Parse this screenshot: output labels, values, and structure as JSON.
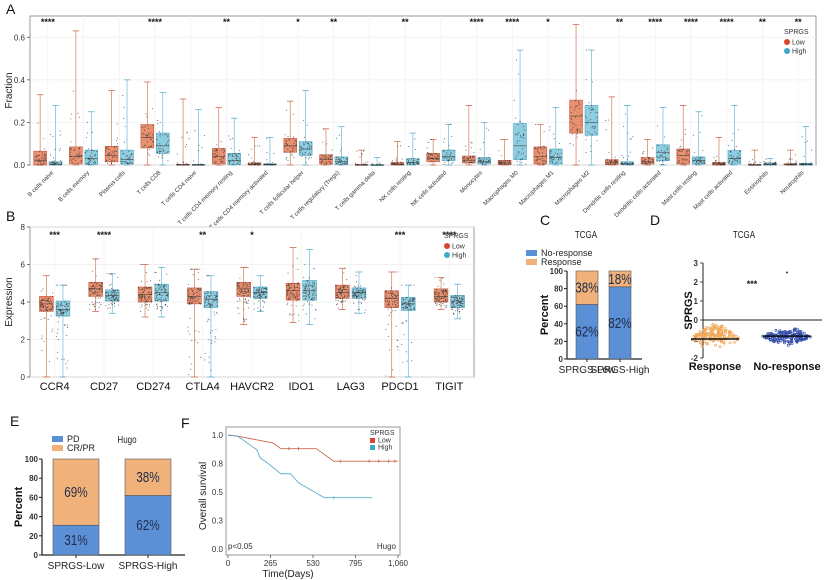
{
  "colors": {
    "low": "#e8906f",
    "low_line": "#c8563a",
    "high": "#8fcde0",
    "high_line": "#4aa8c8",
    "no_response": "#5b8fd6",
    "response": "#f0b27a",
    "response_dots": "#f0a85a",
    "noresponse_dots": "#2f4aa8"
  },
  "chart_data": [
    {
      "panel": "A",
      "type": "box",
      "ylabel": "Fraction",
      "ylim": [
        0,
        0.7
      ],
      "yticks": [
        "0.0",
        "0.2",
        "0.4",
        "0.6"
      ],
      "legend": {
        "title": "SPRGS",
        "entries": [
          "Low",
          "High"
        ],
        "position": "top-right"
      },
      "grid": true,
      "categories": [
        "B cells naive",
        "B cells memory",
        "Plasma cells",
        "T cells CD8",
        "T cells CD4 naive",
        "T cells CD4 memory resting",
        "T cells CD4 memory activated",
        "T cells follicular helper",
        "T cells regulatory (Tregs)",
        "T cells gamma delta",
        "NK cells resting",
        "NK cells activated",
        "Monocytes",
        "Macrophages M0",
        "Macrophages M1",
        "Macrophages M2",
        "Dendritic cells resting",
        "Dendritic cells activated",
        "Mast cells resting",
        "Mast cells activated",
        "Eosinophils",
        "Neutrophils"
      ],
      "significance": [
        "****",
        "",
        "",
        "****",
        "",
        "**",
        "",
        "*",
        "**",
        "",
        "**",
        "",
        "****",
        "****",
        "*",
        "",
        "**",
        "****",
        "****",
        "****",
        "**",
        "**"
      ],
      "series": [
        {
          "name": "Low",
          "boxes": [
            [
              0,
              0,
              0.02,
              0.065,
              0.33
            ],
            [
              0,
              0.005,
              0.04,
              0.085,
              0.63
            ],
            [
              0,
              0.015,
              0.045,
              0.088,
              0.35
            ],
            [
              0,
              0.08,
              0.13,
              0.19,
              0.39
            ],
            [
              0,
              0,
              0,
              0.003,
              0.31
            ],
            [
              0,
              0.005,
              0.04,
              0.078,
              0.27
            ],
            [
              0,
              0,
              0.003,
              0.01,
              0.13
            ],
            [
              0,
              0.06,
              0.09,
              0.125,
              0.3
            ],
            [
              0,
              0.005,
              0.025,
              0.048,
              0.17
            ],
            [
              0,
              0,
              0,
              0.002,
              0.07
            ],
            [
              0,
              0,
              0.003,
              0.012,
              0.11
            ],
            [
              0,
              0.015,
              0.03,
              0.055,
              0.12
            ],
            [
              0,
              0.01,
              0.02,
              0.042,
              0.28
            ],
            [
              0,
              0.002,
              0.01,
              0.022,
              0.12
            ],
            [
              0,
              0.005,
              0.04,
              0.085,
              0.19
            ],
            [
              0,
              0.15,
              0.23,
              0.305,
              0.66
            ],
            [
              0,
              0.002,
              0.01,
              0.025,
              0.32
            ],
            [
              0,
              0.005,
              0.015,
              0.035,
              0.12
            ],
            [
              0,
              0.005,
              0.045,
              0.075,
              0.28
            ],
            [
              0,
              0,
              0.005,
              0.012,
              0.13
            ],
            [
              0,
              0,
              0,
              0.002,
              0.07
            ],
            [
              0,
              0,
              0.002,
              0.006,
              0.07
            ]
          ]
        },
        {
          "name": "High",
          "boxes": [
            [
              0,
              0,
              0.003,
              0.015,
              0.28
            ],
            [
              0,
              0.003,
              0.03,
              0.07,
              0.25
            ],
            [
              0,
              0.005,
              0.025,
              0.07,
              0.4
            ],
            [
              0,
              0.055,
              0.09,
              0.15,
              0.34
            ],
            [
              0,
              0,
              0,
              0.002,
              0.26
            ],
            [
              0,
              0.003,
              0.02,
              0.055,
              0.22
            ],
            [
              0,
              0,
              0.002,
              0.005,
              0.13
            ],
            [
              0,
              0.045,
              0.075,
              0.11,
              0.35
            ],
            [
              0,
              0.003,
              0.015,
              0.038,
              0.18
            ],
            [
              0,
              0,
              0,
              0.001,
              0.035
            ],
            [
              0,
              0.003,
              0.012,
              0.03,
              0.15
            ],
            [
              0,
              0.02,
              0.04,
              0.07,
              0.19
            ],
            [
              0,
              0.005,
              0.015,
              0.035,
              0.2
            ],
            [
              0,
              0.025,
              0.09,
              0.195,
              0.54
            ],
            [
              0,
              0.005,
              0.035,
              0.075,
              0.27
            ],
            [
              0,
              0.14,
              0.2,
              0.28,
              0.54
            ],
            [
              0,
              0.001,
              0.005,
              0.015,
              0.28
            ],
            [
              0,
              0.02,
              0.06,
              0.095,
              0.27
            ],
            [
              0,
              0.005,
              0.02,
              0.038,
              0.25
            ],
            [
              0,
              0.005,
              0.03,
              0.068,
              0.28
            ],
            [
              0,
              0,
              0.002,
              0.01,
              0.03
            ],
            [
              0,
              0,
              0.003,
              0.008,
              0.18
            ]
          ]
        }
      ]
    },
    {
      "panel": "B",
      "type": "box",
      "ylabel": "Expression",
      "ylim": [
        0,
        8
      ],
      "yticks": [
        "0",
        "2",
        "4",
        "6",
        "8"
      ],
      "legend": {
        "title": "SPRGS",
        "entries": [
          "Low",
          "High"
        ],
        "position": "top-right"
      },
      "grid": true,
      "categories": [
        "CCR4",
        "CD27",
        "CD274",
        "CTLA4",
        "HAVCR2",
        "IDO1",
        "LAG3",
        "PDCD1",
        "TIGIT"
      ],
      "significance": [
        "***",
        "****",
        "",
        "**",
        "*",
        "",
        "",
        "***",
        "****"
      ],
      "series": [
        {
          "name": "Low",
          "boxes": [
            [
              0,
              3.5,
              3.9,
              4.3,
              5.4
            ],
            [
              3.5,
              4.3,
              4.7,
              5.05,
              6.3
            ],
            [
              3.2,
              4.0,
              4.4,
              4.8,
              6.0
            ],
            [
              0,
              3.9,
              4.3,
              4.75,
              5.75
            ],
            [
              2.8,
              4.3,
              4.7,
              5.05,
              5.85
            ],
            [
              2.9,
              4.1,
              4.6,
              5.0,
              6.9
            ],
            [
              3.6,
              4.2,
              4.5,
              4.9,
              5.8
            ],
            [
              0,
              3.7,
              4.2,
              4.6,
              5.6
            ],
            [
              3.6,
              4.0,
              4.3,
              4.7,
              5.3
            ]
          ]
        },
        {
          "name": "High",
          "boxes": [
            [
              0,
              3.25,
              3.6,
              4.05,
              4.9
            ],
            [
              3.4,
              4.05,
              4.35,
              4.65,
              5.5
            ],
            [
              3.2,
              4.05,
              4.5,
              4.95,
              5.85
            ],
            [
              0,
              3.7,
              4.15,
              4.55,
              5.4
            ],
            [
              3.5,
              4.2,
              4.5,
              4.8,
              5.4
            ],
            [
              2.8,
              4.1,
              4.6,
              5.15,
              6.8
            ],
            [
              3.4,
              4.2,
              4.5,
              4.75,
              5.6
            ],
            [
              0,
              3.55,
              3.9,
              4.25,
              4.9
            ],
            [
              3.1,
              3.7,
              4.05,
              4.35,
              4.95
            ]
          ]
        }
      ]
    },
    {
      "panel": "C",
      "type": "bar",
      "stacked": true,
      "title": "TCGA",
      "ylabel": "Percent",
      "ylim": [
        0,
        100
      ],
      "yticks": [
        "0",
        "20",
        "40",
        "60",
        "80",
        "100"
      ],
      "categories": [
        "SPRGS-Low",
        "SPRGS-High"
      ],
      "legend": {
        "entries": [
          "No-response",
          "Response"
        ],
        "position": "top-left"
      },
      "series": [
        {
          "name": "No-response",
          "values": [
            62,
            82
          ],
          "labels": [
            "62%",
            "82%"
          ]
        },
        {
          "name": "Response",
          "values": [
            38,
            18
          ],
          "labels": [
            "38%",
            "18%"
          ]
        }
      ]
    },
    {
      "panel": "D",
      "type": "scatter",
      "title": "TCGA",
      "ylabel": "SPRGS",
      "ylim": [
        -2,
        3
      ],
      "yticks": [
        "-2",
        "-1",
        "0",
        "1",
        "2",
        "3"
      ],
      "categories": [
        "Response",
        "No-response"
      ],
      "significance": "***",
      "series": [
        {
          "name": "Response",
          "median": -1.0,
          "range": [
            -1.5,
            -0.05
          ]
        },
        {
          "name": "No-response",
          "median": -0.85,
          "range": [
            -1.35,
            -0.4
          ],
          "outlier": 2.5
        }
      ]
    },
    {
      "panel": "E",
      "type": "bar",
      "stacked": true,
      "title": "Hugo",
      "ylabel": "Percent",
      "ylim": [
        0,
        100
      ],
      "yticks": [
        "0",
        "20",
        "40",
        "60",
        "80",
        "100"
      ],
      "categories": [
        "SPRGS-Low",
        "SPRGS-High"
      ],
      "legend": {
        "entries": [
          "PD",
          "CR/PR"
        ],
        "position": "top-left"
      },
      "series": [
        {
          "name": "PD",
          "values": [
            31,
            62
          ],
          "labels": [
            "31%",
            "62%"
          ]
        },
        {
          "name": "CR/PR",
          "values": [
            69,
            38
          ],
          "labels": [
            "69%",
            "38%"
          ]
        }
      ]
    },
    {
      "panel": "F",
      "type": "line",
      "step": true,
      "xlabel": "Time(Days)",
      "ylabel": "Overall survival",
      "xlim": [
        0,
        1060
      ],
      "ylim": [
        0,
        1.0
      ],
      "xticks": [
        "0",
        "265",
        "530",
        "795",
        "1,060"
      ],
      "yticks": [
        "0.0",
        "0.3",
        "0.5",
        "0.8",
        "1.0"
      ],
      "annotation_left": "p<0.05",
      "annotation_right": "Hugo",
      "legend": {
        "title": "SPRGS",
        "entries": [
          "Low",
          "High"
        ],
        "position": "top-right"
      },
      "series": [
        {
          "name": "Low",
          "x": [
            0,
            60,
            280,
            330,
            400,
            550,
            660,
            1060
          ],
          "y": [
            1.0,
            0.99,
            0.93,
            0.88,
            0.88,
            0.88,
            0.77,
            0.77
          ],
          "censor": [
            380,
            440,
            700,
            880,
            940,
            1000,
            1040
          ]
        },
        {
          "name": "High",
          "x": [
            0,
            60,
            120,
            180,
            200,
            250,
            330,
            390,
            440,
            600,
            900
          ],
          "y": [
            1.0,
            0.99,
            0.93,
            0.87,
            0.8,
            0.75,
            0.66,
            0.66,
            0.58,
            0.45,
            0.45
          ],
          "censor": [
            660
          ]
        }
      ]
    }
  ],
  "panels": {
    "A": "A",
    "B": "B",
    "C": "C",
    "D": "D",
    "E": "E",
    "F": "F"
  }
}
